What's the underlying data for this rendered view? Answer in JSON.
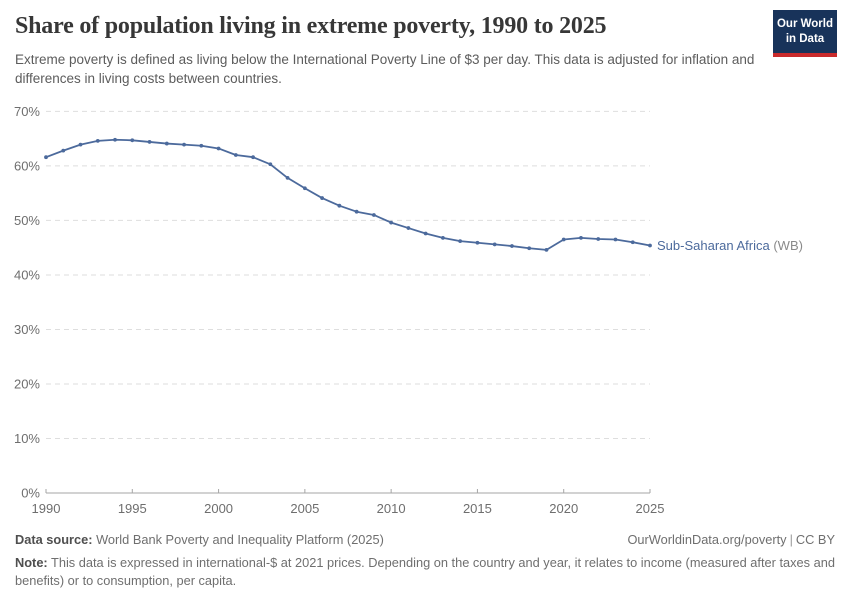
{
  "header": {
    "title": "Share of population living in extreme poverty, 1990 to 2025",
    "subtitle": "Extreme poverty is defined as living below the International Poverty Line of $3 per day. This data is adjusted for inflation and differences in living costs between countries.",
    "logo": {
      "line1": "Our World",
      "line2": "in Data"
    }
  },
  "chart_data": {
    "type": "line",
    "title": "Share of population living in extreme poverty, 1990 to 2025",
    "xlabel": "",
    "ylabel": "",
    "xlim": [
      1990,
      2025
    ],
    "ylim": [
      0,
      70
    ],
    "x_ticks": [
      1990,
      1995,
      2000,
      2005,
      2010,
      2015,
      2020,
      2025
    ],
    "y_ticks": [
      0,
      10,
      20,
      30,
      40,
      50,
      60,
      70
    ],
    "y_tick_suffix": "%",
    "grid": "horizontal-dashed",
    "legend_position": "end-of-line-label",
    "series": [
      {
        "name": "Sub-Saharan Africa (WB)",
        "entity": "Sub-Saharan Africa",
        "suffix": " (WB)",
        "x": [
          1990,
          1991,
          1992,
          1993,
          1994,
          1995,
          1996,
          1997,
          1998,
          1999,
          2000,
          2001,
          2002,
          2003,
          2004,
          2005,
          2006,
          2007,
          2008,
          2009,
          2010,
          2011,
          2012,
          2013,
          2014,
          2015,
          2016,
          2017,
          2018,
          2019,
          2020,
          2021,
          2022,
          2023,
          2024,
          2025
        ],
        "values": [
          61.6,
          62.8,
          63.9,
          64.6,
          64.8,
          64.7,
          64.4,
          64.1,
          63.9,
          63.7,
          63.2,
          62.0,
          61.6,
          60.3,
          57.8,
          55.9,
          54.1,
          52.7,
          51.6,
          51.0,
          49.6,
          48.6,
          47.6,
          46.8,
          46.2,
          45.9,
          45.6,
          45.3,
          44.9,
          44.6,
          46.5,
          46.8,
          46.6,
          46.5,
          46.0,
          45.4
        ]
      }
    ],
    "colors": {
      "line": "#4c6a9c",
      "end_label_entity": "#4c6a9c",
      "end_label_suffix": "#8a8a8a",
      "gridline": "#dedede",
      "axis_line": "#a5a5a5",
      "tick_text": "#6e6e6e"
    }
  },
  "footer": {
    "source_label": "Data source:",
    "source_text": " World Bank Poverty and Inequality Platform (2025)",
    "link": "OurWorldinData.org/poverty",
    "separator": "|",
    "license": "CC BY",
    "note_label": "Note:",
    "note_text": " This data is expressed in international-$ at 2021 prices. Depending on the country and year, it relates to income (measured after taxes and benefits) or to consumption, per capita."
  }
}
